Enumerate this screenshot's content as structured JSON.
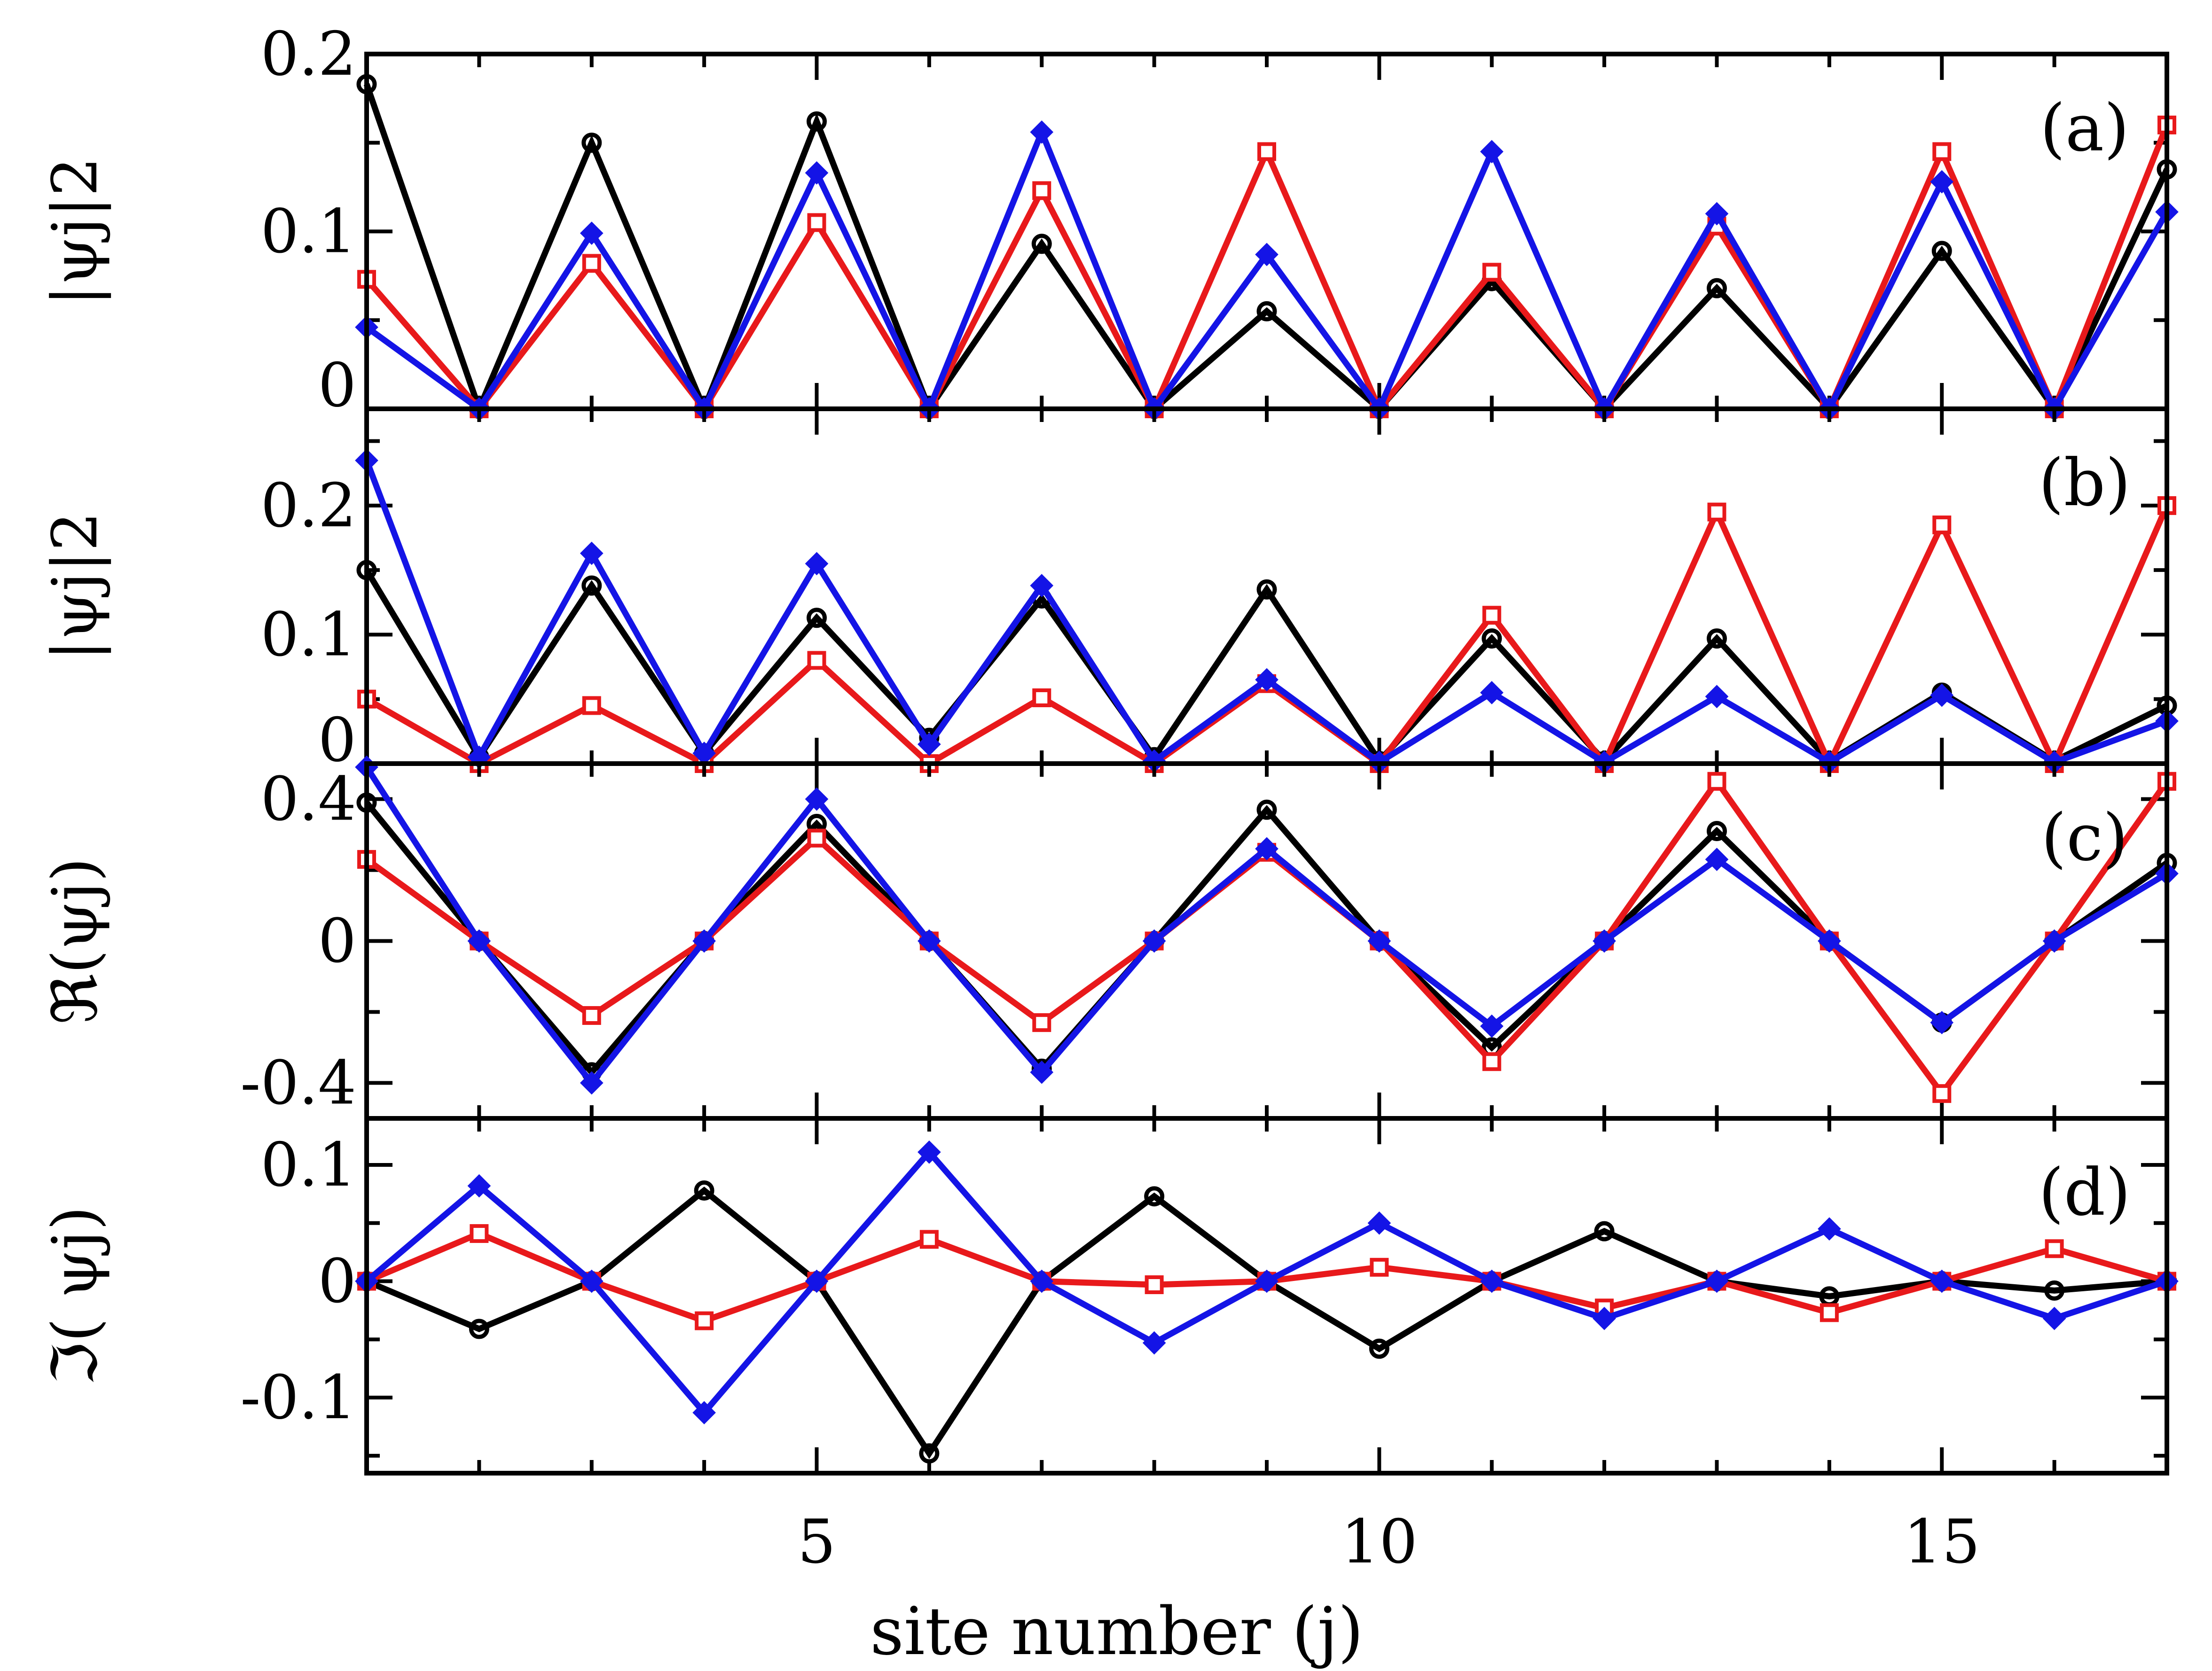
{
  "chart_data": {
    "type": "line",
    "xlabel": "site number (j)",
    "x": [
      1,
      2,
      3,
      4,
      5,
      6,
      7,
      8,
      9,
      10,
      11,
      12,
      13,
      14,
      15,
      16,
      17
    ],
    "xlim": [
      1,
      17
    ],
    "xticks": [
      5,
      10,
      15
    ],
    "xtick_labels": [
      "5",
      "10",
      "15"
    ],
    "colors": {
      "black": "#000000",
      "red": "#e8191b",
      "blue": "#1414e6"
    },
    "panels": [
      {
        "label": "(a)",
        "ylabel": "|ψj|2",
        "ylim": [
          0,
          0.2
        ],
        "yticks": [
          0,
          0.1,
          0.2
        ],
        "ytick_labels": [
          "0",
          "0.1",
          "0.2"
        ],
        "series": [
          {
            "name": "black",
            "marker": "circle",
            "values": [
              0.183,
              0,
              0.15,
              0,
              0.162,
              0,
              0.093,
              0,
              0.055,
              0,
              0.072,
              0,
              0.068,
              0,
              0.089,
              0,
              0.135
            ]
          },
          {
            "name": "red",
            "marker": "square",
            "values": [
              0.073,
              0,
              0.082,
              0,
              0.105,
              0,
              0.123,
              0,
              0.145,
              0,
              0.077,
              0,
              0.103,
              0,
              0.145,
              0,
              0.16
            ]
          },
          {
            "name": "blue",
            "marker": "diamond",
            "values": [
              0.046,
              0,
              0.099,
              0,
              0.133,
              0,
              0.156,
              0,
              0.087,
              0,
              0.145,
              0,
              0.11,
              0,
              0.128,
              0,
              0.111
            ]
          }
        ]
      },
      {
        "label": "(b)",
        "ylabel": "|ψj|2",
        "ylim": [
          0,
          0.275
        ],
        "yticks": [
          0,
          0.1,
          0.2
        ],
        "ytick_labels": [
          "0",
          "0.1",
          "0.2"
        ],
        "series": [
          {
            "name": "black",
            "marker": "circle",
            "values": [
              0.15,
              0.005,
              0.138,
              0.008,
              0.113,
              0.02,
              0.128,
              0.005,
              0.135,
              0.002,
              0.097,
              0.002,
              0.097,
              0.002,
              0.055,
              0.002,
              0.045
            ]
          },
          {
            "name": "red",
            "marker": "square",
            "values": [
              0.05,
              0,
              0.045,
              0,
              0.08,
              0,
              0.051,
              0,
              0.062,
              0,
              0.115,
              0,
              0.195,
              0,
              0.185,
              0,
              0.2
            ]
          },
          {
            "name": "blue",
            "marker": "diamond",
            "values": [
              0.235,
              0.005,
              0.163,
              0.008,
              0.155,
              0.015,
              0.138,
              0.002,
              0.065,
              0.001,
              0.055,
              0.001,
              0.052,
              0.001,
              0.053,
              0.001,
              0.033
            ]
          }
        ]
      },
      {
        "label": "(c)",
        "ylabel": "ℜ(ψj)",
        "ylim": [
          -0.5,
          0.5
        ],
        "yticks": [
          -0.4,
          0,
          0.4
        ],
        "ytick_labels": [
          "-0.4",
          "0",
          "0.4"
        ],
        "series": [
          {
            "name": "black",
            "marker": "circle",
            "values": [
              0.39,
              0,
              -0.37,
              0,
              0.33,
              0,
              -0.36,
              0,
              0.37,
              0,
              -0.3,
              0,
              0.31,
              0,
              -0.23,
              0,
              0.22
            ]
          },
          {
            "name": "red",
            "marker": "square",
            "values": [
              0.23,
              0,
              -0.21,
              0,
              0.29,
              0,
              -0.23,
              0,
              0.25,
              0,
              -0.34,
              0,
              0.45,
              0,
              -0.43,
              0,
              0.45
            ]
          },
          {
            "name": "blue",
            "marker": "diamond",
            "values": [
              0.49,
              0,
              -0.4,
              0,
              0.4,
              0,
              -0.37,
              0,
              0.26,
              0,
              -0.24,
              0,
              0.23,
              0,
              -0.23,
              0,
              0.19
            ]
          }
        ]
      },
      {
        "label": "(d)",
        "ylabel": "ℑ( ψj)",
        "ylim": [
          -0.165,
          0.14
        ],
        "yticks": [
          -0.1,
          0,
          0.1
        ],
        "ytick_labels": [
          "-0.1",
          "0",
          "0.1"
        ],
        "series": [
          {
            "name": "black",
            "marker": "circle",
            "values": [
              0,
              -0.041,
              0,
              0.078,
              0,
              -0.148,
              0,
              0.073,
              0,
              -0.058,
              0,
              0.043,
              0,
              -0.013,
              0,
              -0.008,
              0
            ]
          },
          {
            "name": "red",
            "marker": "square",
            "values": [
              0,
              0.041,
              0,
              -0.034,
              0,
              0.036,
              0,
              -0.003,
              0,
              0.012,
              0,
              -0.023,
              0,
              -0.027,
              0,
              0.028,
              0
            ]
          },
          {
            "name": "blue",
            "marker": "diamond",
            "values": [
              0,
              0.082,
              0,
              -0.113,
              0,
              0.111,
              0,
              -0.053,
              0,
              0.05,
              0,
              -0.032,
              0,
              0.045,
              0,
              -0.032,
              0
            ]
          }
        ]
      }
    ]
  }
}
